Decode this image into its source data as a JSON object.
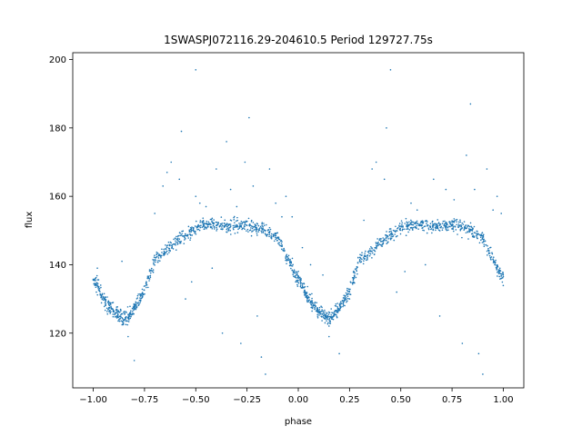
{
  "chart_data": {
    "type": "scatter",
    "title": "1SWASPJ072116.29-204610.5 Period 129727.75s",
    "xlabel": "phase",
    "ylabel": "flux",
    "xlim": [
      -1.1,
      1.1
    ],
    "ylim": [
      104,
      202
    ],
    "xticks": [
      -1.0,
      -0.75,
      -0.5,
      -0.25,
      0.0,
      0.25,
      0.5,
      0.75,
      1.0
    ],
    "xtick_labels": [
      "−1.00",
      "−0.75",
      "−0.50",
      "−0.25",
      "0.00",
      "0.25",
      "0.50",
      "0.75",
      "1.00"
    ],
    "yticks": [
      120,
      140,
      160,
      180,
      200
    ],
    "ytick_labels": [
      "120",
      "140",
      "160",
      "180",
      "200"
    ],
    "grid": false,
    "point_color": "#1f77b4",
    "series": [
      {
        "points": [
          [
            -1.0,
            135.5
          ],
          [
            -0.98,
            134.0
          ],
          [
            -0.96,
            131.0
          ],
          [
            -0.94,
            129.0
          ],
          [
            -0.92,
            127.5
          ],
          [
            -0.9,
            126.5
          ],
          [
            -0.88,
            125.5
          ],
          [
            -0.86,
            124.5
          ],
          [
            -0.84,
            124.5
          ],
          [
            -0.82,
            125.5
          ],
          [
            -0.8,
            127.0
          ],
          [
            -0.78,
            129.0
          ],
          [
            -0.76,
            131.5
          ],
          [
            -0.73,
            136.0
          ],
          [
            -0.7,
            141.5
          ],
          [
            -0.67,
            142.5
          ],
          [
            -0.64,
            144.0
          ],
          [
            -0.61,
            146.0
          ],
          [
            -0.58,
            147.5
          ],
          [
            -0.55,
            149.0
          ],
          [
            -0.52,
            150.0
          ],
          [
            -0.49,
            151.0
          ],
          [
            -0.46,
            151.5
          ],
          [
            -0.43,
            152.0
          ],
          [
            -0.4,
            151.5
          ],
          [
            -0.37,
            151.5
          ],
          [
            -0.34,
            151.5
          ],
          [
            -0.31,
            151.5
          ],
          [
            -0.28,
            151.5
          ],
          [
            -0.25,
            151.5
          ],
          [
            -0.22,
            151.0
          ],
          [
            -0.19,
            150.5
          ],
          [
            -0.16,
            150.0
          ],
          [
            -0.13,
            149.0
          ],
          [
            -0.1,
            148.0
          ],
          [
            -0.07,
            144.0
          ],
          [
            -0.04,
            140.5
          ],
          [
            -0.02,
            138.0
          ],
          [
            0.0,
            135.5
          ],
          [
            0.02,
            134.0
          ],
          [
            0.04,
            131.0
          ],
          [
            0.06,
            129.0
          ],
          [
            0.08,
            127.5
          ],
          [
            0.1,
            126.5
          ],
          [
            0.12,
            125.5
          ],
          [
            0.14,
            124.5
          ],
          [
            0.16,
            124.5
          ],
          [
            0.18,
            125.5
          ],
          [
            0.2,
            127.0
          ],
          [
            0.22,
            129.0
          ],
          [
            0.24,
            131.5
          ],
          [
            0.27,
            136.0
          ],
          [
            0.3,
            141.5
          ],
          [
            0.33,
            142.5
          ],
          [
            0.36,
            144.0
          ],
          [
            0.39,
            146.0
          ],
          [
            0.42,
            147.5
          ],
          [
            0.45,
            149.0
          ],
          [
            0.48,
            150.0
          ],
          [
            0.51,
            151.0
          ],
          [
            0.54,
            151.5
          ],
          [
            0.57,
            152.0
          ],
          [
            0.6,
            151.5
          ],
          [
            0.63,
            151.5
          ],
          [
            0.66,
            151.5
          ],
          [
            0.69,
            151.5
          ],
          [
            0.72,
            151.5
          ],
          [
            0.75,
            151.5
          ],
          [
            0.78,
            151.0
          ],
          [
            0.81,
            150.5
          ],
          [
            0.84,
            150.0
          ],
          [
            0.87,
            149.0
          ],
          [
            0.9,
            148.0
          ],
          [
            0.93,
            144.0
          ],
          [
            0.96,
            140.5
          ],
          [
            0.98,
            138.0
          ],
          [
            1.0,
            136.5
          ]
        ]
      }
    ],
    "outliers": [
      [
        -0.98,
        139.0
      ],
      [
        -0.86,
        141.0
      ],
      [
        -0.83,
        119.0
      ],
      [
        -0.8,
        112.0
      ],
      [
        -0.77,
        131.0
      ],
      [
        -0.7,
        155.0
      ],
      [
        -0.66,
        163.0
      ],
      [
        -0.64,
        167.0
      ],
      [
        -0.62,
        170.0
      ],
      [
        -0.58,
        165.0
      ],
      [
        -0.57,
        179.0
      ],
      [
        -0.55,
        130.0
      ],
      [
        -0.52,
        135.0
      ],
      [
        -0.5,
        160.0
      ],
      [
        -0.48,
        158.0
      ],
      [
        -0.45,
        157.0
      ],
      [
        -0.42,
        139.0
      ],
      [
        -0.4,
        168.0
      ],
      [
        -0.37,
        120.0
      ],
      [
        -0.35,
        176.0
      ],
      [
        -0.33,
        162.0
      ],
      [
        -0.3,
        157.0
      ],
      [
        -0.28,
        117.0
      ],
      [
        -0.26,
        170.0
      ],
      [
        -0.24,
        183.0
      ],
      [
        -0.22,
        163.0
      ],
      [
        -0.2,
        125.0
      ],
      [
        -0.18,
        113.0
      ],
      [
        -0.16,
        108.0
      ],
      [
        -0.14,
        168.0
      ],
      [
        -0.11,
        158.0
      ],
      [
        -0.08,
        154.0
      ],
      [
        -0.06,
        160.0
      ],
      [
        -0.03,
        154.0
      ],
      [
        0.02,
        145.0
      ],
      [
        0.06,
        140.0
      ],
      [
        0.12,
        137.0
      ],
      [
        0.15,
        119.0
      ],
      [
        0.18,
        128.0
      ],
      [
        0.2,
        114.0
      ],
      [
        0.25,
        130.0
      ],
      [
        0.32,
        153.0
      ],
      [
        0.36,
        168.0
      ],
      [
        0.38,
        170.0
      ],
      [
        0.42,
        165.0
      ],
      [
        0.43,
        180.0
      ],
      [
        0.48,
        132.0
      ],
      [
        0.52,
        138.0
      ],
      [
        0.55,
        158.0
      ],
      [
        0.58,
        156.0
      ],
      [
        0.62,
        140.0
      ],
      [
        0.66,
        165.0
      ],
      [
        0.69,
        125.0
      ],
      [
        0.72,
        162.0
      ],
      [
        0.76,
        159.0
      ],
      [
        0.8,
        117.0
      ],
      [
        0.82,
        172.0
      ],
      [
        0.84,
        187.0
      ],
      [
        0.86,
        162.0
      ],
      [
        0.88,
        114.0
      ],
      [
        0.9,
        108.0
      ],
      [
        0.92,
        168.0
      ],
      [
        0.95,
        156.0
      ],
      [
        0.97,
        160.0
      ],
      [
        0.99,
        155.0
      ],
      [
        -0.5,
        197.0
      ],
      [
        0.45,
        197.0
      ]
    ]
  }
}
